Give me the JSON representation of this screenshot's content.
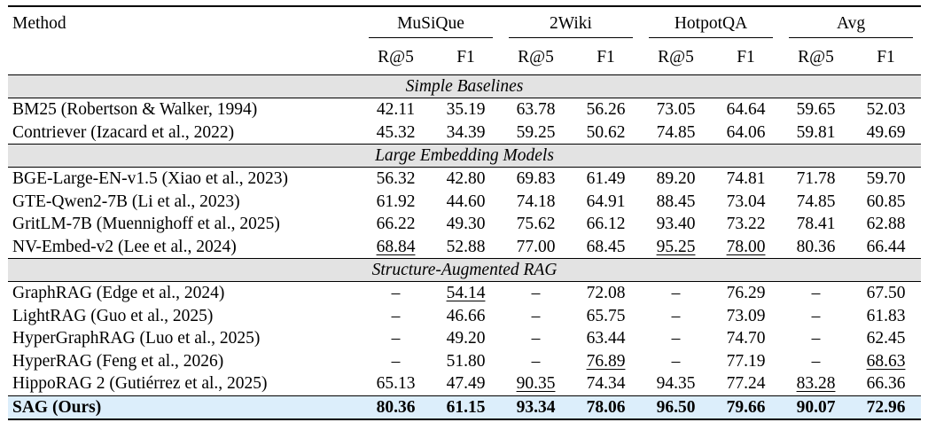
{
  "table": {
    "method_header": "Method",
    "groups": [
      "MuSiQue",
      "2Wiki",
      "HotpotQA",
      "Avg"
    ],
    "metrics": [
      "R@5",
      "F1",
      "R@5",
      "F1",
      "R@5",
      "F1",
      "R@5",
      "F1"
    ],
    "sections": [
      {
        "title": "Simple Baselines",
        "rows": [
          {
            "method": "BM25 (Robertson & Walker, 1994)",
            "values": [
              "42.11",
              "35.19",
              "63.78",
              "56.26",
              "73.05",
              "64.64",
              "59.65",
              "52.03"
            ],
            "underline": []
          },
          {
            "method": "Contriever (Izacard et al., 2022)",
            "values": [
              "45.32",
              "34.39",
              "59.25",
              "50.62",
              "74.85",
              "64.06",
              "59.81",
              "49.69"
            ],
            "underline": []
          }
        ]
      },
      {
        "title": "Large Embedding Models",
        "rows": [
          {
            "method": "BGE-Large-EN-v1.5 (Xiao et al., 2023)",
            "values": [
              "56.32",
              "42.80",
              "69.83",
              "61.49",
              "89.20",
              "74.81",
              "71.78",
              "59.70"
            ],
            "underline": []
          },
          {
            "method": "GTE-Qwen2-7B (Li et al., 2023)",
            "values": [
              "61.92",
              "44.60",
              "74.18",
              "64.91",
              "88.45",
              "73.04",
              "74.85",
              "60.85"
            ],
            "underline": []
          },
          {
            "method": "GritLM-7B (Muennighoff et al., 2025)",
            "values": [
              "66.22",
              "49.30",
              "75.62",
              "66.12",
              "93.40",
              "73.22",
              "78.41",
              "62.88"
            ],
            "underline": []
          },
          {
            "method": "NV-Embed-v2 (Lee et al., 2024)",
            "values": [
              "68.84",
              "52.88",
              "77.00",
              "68.45",
              "95.25",
              "78.00",
              "80.36",
              "66.44"
            ],
            "underline": [
              0,
              4,
              5
            ]
          }
        ]
      },
      {
        "title": "Structure-Augmented RAG",
        "rows": [
          {
            "method": "GraphRAG (Edge et al., 2024)",
            "values": [
              "–",
              "54.14",
              "–",
              "72.08",
              "–",
              "76.29",
              "–",
              "67.50"
            ],
            "underline": [
              1
            ]
          },
          {
            "method": "LightRAG (Guo et al., 2025)",
            "values": [
              "–",
              "46.66",
              "–",
              "65.75",
              "–",
              "73.09",
              "–",
              "61.83"
            ],
            "underline": []
          },
          {
            "method": "HyperGraphRAG (Luo et al., 2025)",
            "values": [
              "–",
              "49.20",
              "–",
              "63.44",
              "–",
              "74.70",
              "–",
              "62.45"
            ],
            "underline": []
          },
          {
            "method": "HyperRAG (Feng et al., 2026)",
            "values": [
              "–",
              "51.80",
              "–",
              "76.89",
              "–",
              "77.19",
              "–",
              "68.63"
            ],
            "underline": [
              3,
              7
            ]
          },
          {
            "method": "HippoRAG 2 (Gutiérrez et al., 2025)",
            "values": [
              "65.13",
              "47.49",
              "90.35",
              "74.34",
              "94.35",
              "77.24",
              "83.28",
              "66.36"
            ],
            "underline": [
              2,
              6
            ]
          }
        ]
      }
    ],
    "ours": {
      "method": "SAG (Ours)",
      "values": [
        "80.36",
        "61.15",
        "93.34",
        "78.06",
        "96.50",
        "79.66",
        "90.07",
        "72.96"
      ]
    },
    "colors": {
      "section_bg": "#e3e3e3",
      "ours_bg": "#dceefb"
    }
  }
}
